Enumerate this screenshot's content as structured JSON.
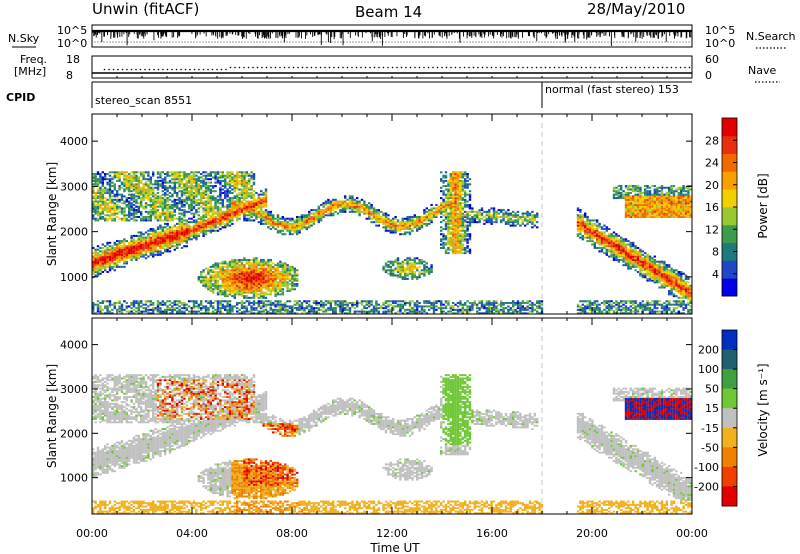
{
  "header": {
    "station": "Unwin (fitACF)",
    "beam": "Beam 14",
    "date": "28/May/2010"
  },
  "nsky_panel": {
    "left_label": "N.Sky",
    "left_ticks": [
      "10^5",
      "10^0"
    ],
    "right_ticks": [
      "10^5",
      "10^0"
    ],
    "right_label": "N.Search"
  },
  "freq_panel": {
    "left_label_1": "Freq.",
    "left_label_2": "[MHz]",
    "left_ticks": [
      "18",
      "8"
    ],
    "right_ticks": [
      "60",
      "0"
    ],
    "right_label": "Nave"
  },
  "cpid_panel": {
    "label": "CPID",
    "segments": [
      {
        "name": "stereo_scan",
        "id": "8551",
        "start_hour": 0,
        "end_hour": 18
      },
      {
        "name": "normal (fast stereo)",
        "id": "153",
        "start_hour": 18,
        "end_hour": 24
      }
    ]
  },
  "chart_data": [
    {
      "type": "heatmap",
      "title": "",
      "xlabel": "Time UT",
      "ylabel": "Slant Range [km]",
      "x_ticks": [
        "00:00",
        "04:00",
        "08:00",
        "12:00",
        "16:00",
        "20:00",
        "00:00"
      ],
      "xlim_hours": [
        0,
        24
      ],
      "y_ticks": [
        "1000",
        "2000",
        "3000",
        "4000"
      ],
      "ylim_km": [
        180,
        4600
      ],
      "colorbar": {
        "label": "Power [dB]",
        "ticks": [
          "4",
          "8",
          "12",
          "16",
          "20",
          "24",
          "28"
        ],
        "colors": [
          "#0000e8",
          "#2046c8",
          "#1d7a7a",
          "#3b9b4e",
          "#98c833",
          "#f0d000",
          "#f8a000",
          "#f06a00",
          "#e83010",
          "#e00000"
        ]
      },
      "data_gap_hours": [
        18.0,
        19.3
      ]
    },
    {
      "type": "heatmap",
      "title": "",
      "xlabel": "Time UT",
      "ylabel": "Slant Range [km]",
      "x_ticks": [
        "00:00",
        "04:00",
        "08:00",
        "12:00",
        "16:00",
        "20:00",
        "00:00"
      ],
      "xlim_hours": [
        0,
        24
      ],
      "y_ticks": [
        "1000",
        "2000",
        "3000",
        "4000"
      ],
      "ylim_km": [
        180,
        4600
      ],
      "colorbar": {
        "label": "Velocity [m s⁻¹]",
        "ticks": [
          "200",
          "100",
          "50",
          "15",
          "-15",
          "-50",
          "-100",
          "-200"
        ],
        "colors": [
          "#0030c0",
          "#206070",
          "#40a040",
          "#70c838",
          "#c0c0c0",
          "#f0b020",
          "#f08000",
          "#f04000",
          "#e00000"
        ]
      },
      "data_gap_hours": [
        18.0,
        19.3
      ]
    }
  ]
}
